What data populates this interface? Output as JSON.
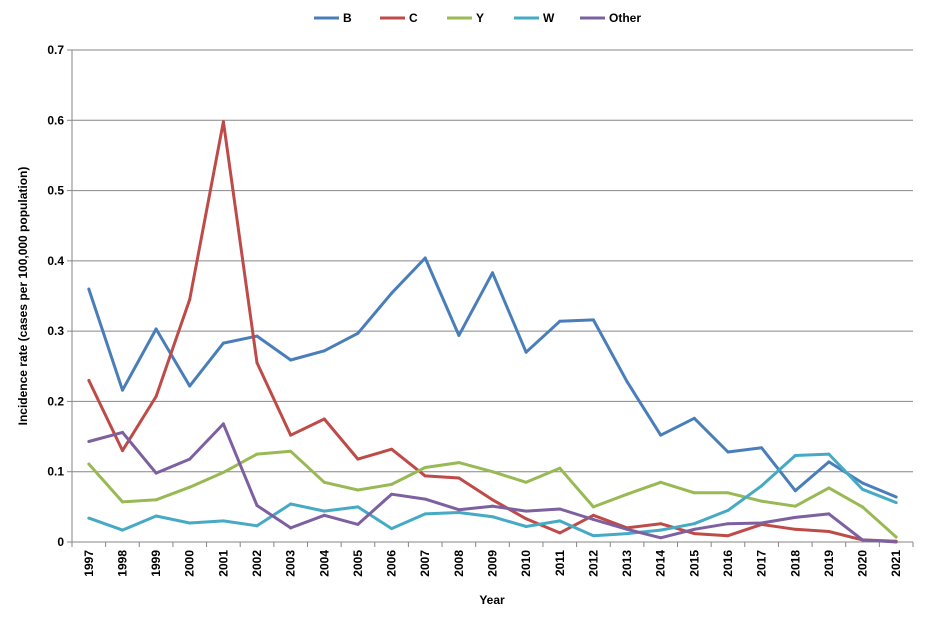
{
  "chart_data": {
    "type": "line",
    "title": "",
    "xlabel": "Year",
    "ylabel": "Incidence rate (cases per 100,000 population)",
    "ylim": [
      0,
      0.7
    ],
    "yticks": [
      "0",
      "0.1",
      "0.2",
      "0.3",
      "0.4",
      "0.5",
      "0.6",
      "0.7"
    ],
    "grid": "horizontal",
    "legend_position": "top",
    "x": [
      "1997",
      "1998",
      "1999",
      "2000",
      "2001",
      "2002",
      "2003",
      "2004",
      "2005",
      "2006",
      "2007",
      "2008",
      "2009",
      "2010",
      "2011",
      "2012",
      "2013",
      "2014",
      "2015",
      "2016",
      "2017",
      "2018",
      "2019",
      "2020",
      "2021"
    ],
    "series": [
      {
        "name": "B",
        "color": "#4A7EBB",
        "values": [
          0.36,
          0.216,
          0.303,
          0.222,
          0.283,
          0.293,
          0.259,
          0.272,
          0.297,
          0.354,
          0.404,
          0.294,
          0.383,
          0.27,
          0.314,
          0.316,
          0.228,
          0.152,
          0.176,
          0.128,
          0.134,
          0.073,
          0.114,
          0.084,
          0.064
        ]
      },
      {
        "name": "C",
        "color": "#BE4B48",
        "values": [
          0.23,
          0.13,
          0.207,
          0.345,
          0.598,
          0.255,
          0.152,
          0.175,
          0.118,
          0.132,
          0.094,
          0.091,
          0.06,
          0.033,
          0.013,
          0.038,
          0.02,
          0.026,
          0.012,
          0.009,
          0.025,
          0.018,
          0.015,
          0.003,
          0.001
        ]
      },
      {
        "name": "Y",
        "color": "#98B954",
        "values": [
          0.111,
          0.057,
          0.06,
          0.078,
          0.099,
          0.125,
          0.129,
          0.085,
          0.074,
          0.082,
          0.106,
          0.113,
          0.1,
          0.085,
          0.105,
          0.05,
          0.068,
          0.085,
          0.07,
          0.07,
          0.058,
          0.051,
          0.077,
          0.05,
          0.007
        ]
      },
      {
        "name": "W",
        "color": "#46AAC5",
        "values": [
          0.034,
          0.017,
          0.037,
          0.027,
          0.03,
          0.023,
          0.054,
          0.044,
          0.05,
          0.019,
          0.04,
          0.042,
          0.036,
          0.022,
          0.03,
          0.009,
          0.012,
          0.017,
          0.026,
          0.045,
          0.08,
          0.123,
          0.125,
          0.075,
          0.056
        ]
      },
      {
        "name": "Other",
        "color": "#7D60A0",
        "values": [
          0.143,
          0.156,
          0.098,
          0.118,
          0.168,
          0.052,
          0.02,
          0.038,
          0.025,
          0.068,
          0.061,
          0.046,
          0.051,
          0.044,
          0.047,
          0.032,
          0.018,
          0.006,
          0.018,
          0.026,
          0.027,
          0.035,
          0.04,
          0.003,
          0.0
        ]
      }
    ]
  }
}
